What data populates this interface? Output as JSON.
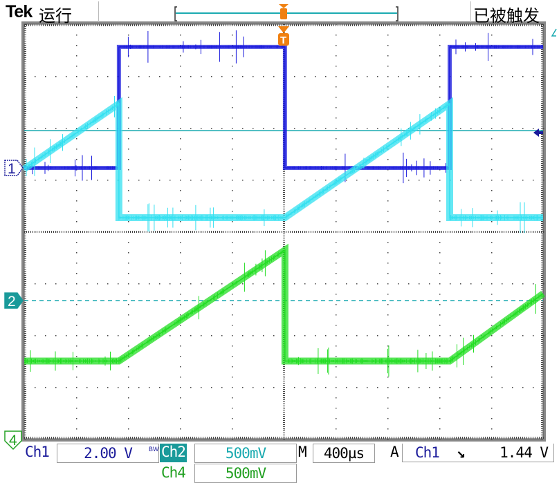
{
  "header": {
    "brand": "Tek",
    "run_state": "运行",
    "trigger_state": "已被触发",
    "trigger_marker": "T"
  },
  "markers": {
    "ch1": "1",
    "ch2": "2",
    "ch4": "4"
  },
  "footer": {
    "ch1_label": "Ch1",
    "ch1_scale": "2.00 V",
    "bw_label": "BW",
    "ch2_label": "Ch2",
    "ch2_scale": "500mV",
    "ch4_label": "Ch4",
    "ch4_scale": "500mV",
    "timebase_label": "M",
    "timebase": "400µs",
    "trigger_mode": "A",
    "trigger_source": "Ch1",
    "trigger_slope": "falling",
    "trigger_slope_glyph": "⌅",
    "trigger_level": "1.44 V"
  },
  "colors": {
    "ch1": "#1a1adc",
    "ch2": "#33e0f0",
    "ch4": "#22dd22",
    "trigger": "#f08010",
    "ch2_marker": "#1a9a9a",
    "grid": "#444444"
  },
  "chart_data": {
    "type": "line",
    "xlabel": "",
    "ylabel": "",
    "x_unit": "µs",
    "xlim": [
      -2000,
      2000
    ],
    "divisions": {
      "x": 10,
      "y": 8
    },
    "grid": true,
    "series": [
      {
        "name": "Ch1",
        "scale_per_div": 2.0,
        "unit": "V",
        "x": [
          -2000,
          -1270,
          -1270,
          10,
          10,
          1280,
          1280,
          2000
        ],
        "y": [
          0,
          0,
          4.67,
          4.67,
          0,
          0,
          4.67,
          4.67
        ]
      },
      {
        "name": "Ch2",
        "scale_per_div": 0.5,
        "unit": "V",
        "x": [
          -2000,
          -1270,
          -1270,
          10,
          1280,
          1280,
          2000
        ],
        "y": [
          1.27,
          1.9,
          0.8,
          0.8,
          1.9,
          0.8,
          0.8
        ]
      },
      {
        "name": "Ch4",
        "scale_per_div": 0.5,
        "unit": "V",
        "x": [
          -2000,
          -1270,
          10,
          10,
          1280,
          2000
        ],
        "y": [
          0.75,
          0.75,
          1.82,
          0.75,
          0.75,
          1.4
        ]
      }
    ],
    "trigger_level_V": 1.44
  }
}
